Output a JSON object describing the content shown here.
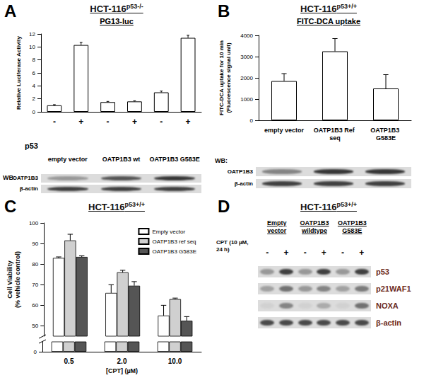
{
  "chart_data": [
    {
      "panel": "A",
      "type": "bar",
      "title": "HCT-116",
      "title_superscript": "p53-/-",
      "subtitle": "PG13-luc",
      "y_label": "Relative Luciferase Activity",
      "x_row_label": "p53",
      "categories": [
        "-",
        "+",
        "-",
        "+",
        "-",
        "+"
      ],
      "groups": [
        "empty vector",
        "OATP1B3 wt",
        "OATP1B3 G583E"
      ],
      "values": [
        1.0,
        10.3,
        1.5,
        1.6,
        3.0,
        11.4
      ],
      "errors": [
        0.1,
        0.4,
        0.1,
        0.1,
        0.2,
        0.4
      ],
      "color": "#ffffff",
      "ylim": [
        0,
        12
      ],
      "yticks": [
        0,
        2,
        4,
        6,
        8,
        10,
        12
      ],
      "western_blot": {
        "label": "WB:",
        "rows": [
          {
            "name": "OATP1B3",
            "intensity": [
              0.35,
              0.7,
              0.85
            ]
          },
          {
            "name": "β-actin",
            "intensity": [
              0.8,
              0.8,
              0.8
            ]
          }
        ]
      }
    },
    {
      "panel": "B",
      "type": "bar",
      "title": "HCT-116",
      "title_superscript": "p53+/+",
      "subtitle": "FITC-DCA uptake",
      "y_label": [
        "FITC-DCA uptake for 10 min",
        "(Fluorescence signal unit)"
      ],
      "categories": [
        "empty vector",
        "OATP1B3 Ref seq",
        "OATP1B3 G583E"
      ],
      "values": [
        1850,
        3250,
        1500
      ],
      "errors": [
        350,
        600,
        650
      ],
      "color": "#ffffff",
      "ylim": [
        0,
        4000
      ],
      "yticks": [
        0,
        1000,
        2000,
        3000,
        4000
      ],
      "western_blot": {
        "label": "WB:",
        "rows": [
          {
            "name": "OATP1B3",
            "intensity": [
              0.45,
              0.85,
              0.85
            ]
          },
          {
            "name": "β-actin",
            "intensity": [
              0.8,
              0.8,
              0.8
            ]
          }
        ]
      }
    },
    {
      "panel": "C",
      "type": "bar",
      "title": "HCT-116",
      "title_superscript": "p53+/+",
      "y_label": [
        "Cell Viability",
        "(% vehicle control)"
      ],
      "x_label": "[CPT] (µM)",
      "categories": [
        "0.5",
        "2.0",
        "10.0"
      ],
      "series": [
        {
          "name": "Empty vector",
          "color": "#ffffff",
          "values": [
            83,
            66,
            55
          ],
          "errors": [
            0.5,
            4,
            5
          ]
        },
        {
          "name": "OATP1B3 ref seq",
          "color": "#d0d0d0",
          "values": [
            91.5,
            76,
            63
          ],
          "errors": [
            3,
            1,
            0.5
          ]
        },
        {
          "name": "OATP1B3 G583E",
          "color": "#555555",
          "values": [
            83.5,
            69.5,
            52.5
          ],
          "errors": [
            0.5,
            2,
            2
          ]
        }
      ],
      "ylim": [
        45,
        100
      ],
      "yticks": [
        50,
        60,
        70,
        80,
        90,
        100
      ],
      "ylim_lower": [
        0,
        5
      ],
      "yticks_lower": [
        0
      ],
      "legend": "top-right"
    }
  ],
  "panel_d": {
    "panel": "D",
    "title": "HCT-116",
    "title_superscript": "p53+/+",
    "treatment_label": "CPT (10 µM, 24 h)",
    "lanes": [
      "-",
      "+",
      "-",
      "+",
      "-",
      "+"
    ],
    "groups": [
      "Empty vector",
      "OATP1B3 wildtype",
      "OATP1B3 G583E"
    ],
    "rows": [
      {
        "name": "p53",
        "intensity": [
          0.35,
          0.8,
          0.35,
          0.8,
          0.35,
          0.8
        ]
      },
      {
        "name": "p21WAF1",
        "intensity": [
          0.3,
          0.55,
          0.35,
          0.45,
          0.3,
          0.5
        ]
      },
      {
        "name": "NOXA",
        "intensity": [
          0.05,
          0.45,
          0.05,
          0.25,
          0.05,
          0.55
        ]
      },
      {
        "name": "β-actin",
        "intensity": [
          0.75,
          0.75,
          0.75,
          0.75,
          0.75,
          0.75
        ]
      }
    ]
  }
}
